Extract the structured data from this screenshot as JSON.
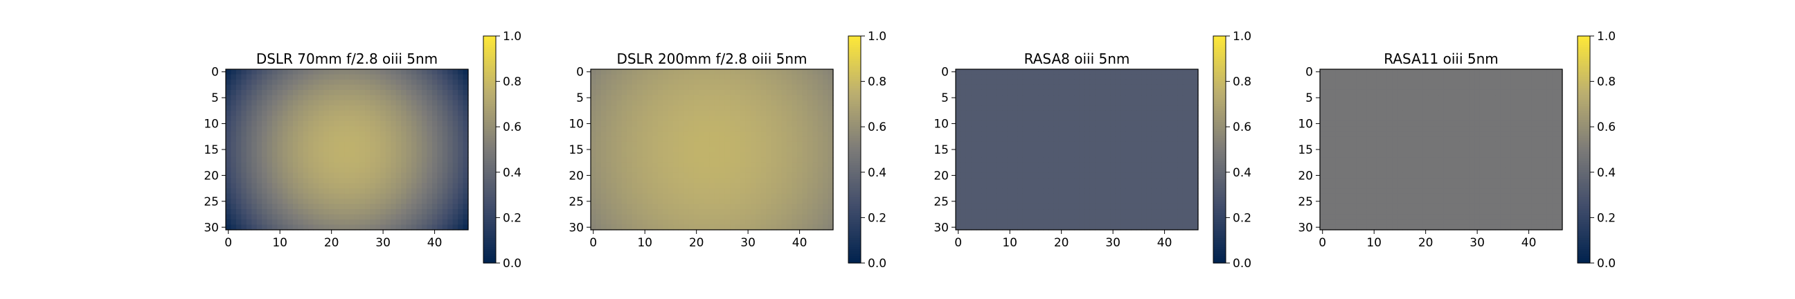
{
  "chart_data": [
    {
      "type": "heatmap",
      "title": "DSLR 70mm f/2.8 oiii 5nm",
      "shape": [
        31,
        47
      ],
      "pattern": "radial-vignette",
      "center": [
        23,
        15
      ],
      "center_value": 0.76,
      "corner_value": 0.05,
      "xticks": [
        0,
        10,
        20,
        30,
        40
      ],
      "yticks": [
        0,
        5,
        10,
        15,
        20,
        25,
        30
      ],
      "colorbar": {
        "min": 0.0,
        "max": 1.0,
        "ticks": [
          "0.0",
          "0.2",
          "0.4",
          "0.6",
          "0.8",
          "1.0"
        ]
      }
    },
    {
      "type": "heatmap",
      "title": "DSLR 200mm f/2.8 oiii 5nm",
      "shape": [
        31,
        47
      ],
      "pattern": "radial-vignette",
      "center": [
        23,
        15
      ],
      "center_value": 0.77,
      "corner_value": 0.55,
      "xticks": [
        0,
        10,
        20,
        30,
        40
      ],
      "yticks": [
        0,
        5,
        10,
        15,
        20,
        25,
        30
      ],
      "colorbar": {
        "min": 0.0,
        "max": 1.0,
        "ticks": [
          "0.0",
          "0.2",
          "0.4",
          "0.6",
          "0.8",
          "1.0"
        ]
      }
    },
    {
      "type": "heatmap",
      "title": "RASA8 oiii 5nm",
      "shape": [
        31,
        47
      ],
      "pattern": "uniform",
      "value": 0.32,
      "xticks": [
        0,
        10,
        20,
        30,
        40
      ],
      "yticks": [
        0,
        5,
        10,
        15,
        20,
        25,
        30
      ],
      "colorbar": {
        "min": 0.0,
        "max": 1.0,
        "ticks": [
          "0.0",
          "0.2",
          "0.4",
          "0.6",
          "0.8",
          "1.0"
        ]
      }
    },
    {
      "type": "heatmap",
      "title": "RASA11 oiii 5nm",
      "shape": [
        31,
        47
      ],
      "pattern": "uniform",
      "value": 0.47,
      "xticks": [
        0,
        10,
        20,
        30,
        40
      ],
      "yticks": [
        0,
        5,
        10,
        15,
        20,
        25,
        30
      ],
      "colorbar": {
        "min": 0.0,
        "max": 1.0,
        "ticks": [
          "0.0",
          "0.2",
          "0.4",
          "0.6",
          "0.8",
          "1.0"
        ]
      }
    }
  ],
  "colormap": {
    "stops": [
      "#00224e",
      "#414d6b",
      "#7c7b78",
      "#bcaf6f",
      "#fee838"
    ]
  }
}
